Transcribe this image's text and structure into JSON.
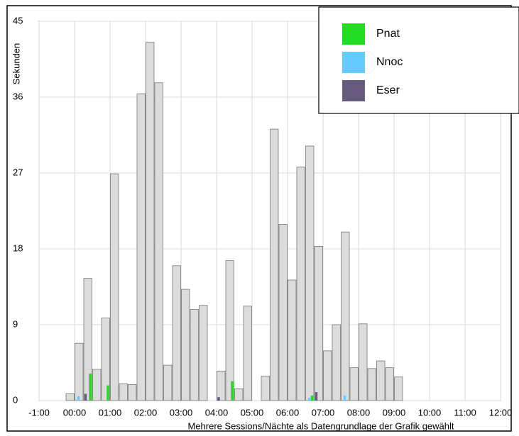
{
  "chart_data": {
    "type": "histogram",
    "ylabel": "Sekunden",
    "xlabel": "Mehrere Sessions/Nächte als Datengrundlage der Grafik gewählt",
    "bins": [
      -0.25,
      0,
      0.25,
      0.5,
      0.75,
      1,
      1.25,
      1.5,
      1.75,
      2,
      2.25,
      2.5,
      2.75,
      3,
      3.25,
      3.5,
      3.75,
      4,
      4.25,
      4.5,
      4.75,
      5,
      5.25,
      5.5,
      5.75,
      6,
      6.25,
      6.5,
      6.75,
      7,
      7.25,
      7.5,
      7.75,
      8,
      8.25,
      8.5,
      8.75,
      9,
      9.25
    ],
    "values": [
      0.8,
      6.8,
      14.5,
      3.7,
      9.8,
      26.9,
      2.0,
      1.9,
      36.4,
      42.5,
      37.7,
      4.2,
      16.0,
      13.2,
      10.8,
      11.3,
      0,
      3.5,
      16.6,
      1.4,
      11.2,
      0,
      2.9,
      32.2,
      20.9,
      14.3,
      27.7,
      30.2,
      18.3,
      5.9,
      9.0,
      20.0,
      3.9,
      9.1,
      3.8,
      4.7,
      3.9,
      2.8
    ],
    "color": "#dcdcdc",
    "series": [
      {
        "name": "Pnat",
        "color": "#22dd22",
        "values": [
          null,
          null,
          3.2,
          null,
          1.8,
          null,
          null,
          null,
          null,
          null,
          null,
          null,
          null,
          null,
          null,
          null,
          null,
          null,
          2.3,
          null,
          null,
          null,
          null,
          null,
          null,
          null,
          null,
          0.6,
          null,
          null,
          null,
          null,
          null,
          null,
          null,
          null,
          null,
          null
        ]
      },
      {
        "name": "Nnoc",
        "color": "#66ccff",
        "values": [
          null,
          0.5,
          null,
          null,
          null,
          null,
          null,
          null,
          null,
          null,
          null,
          null,
          null,
          null,
          null,
          null,
          null,
          null,
          null,
          null,
          null,
          null,
          null,
          null,
          null,
          null,
          null,
          0.3,
          null,
          null,
          null,
          0.6,
          null,
          null,
          null,
          null,
          null,
          null
        ]
      },
      {
        "name": "Eser",
        "color": "#665a7e",
        "values": [
          null,
          null,
          0.8,
          null,
          null,
          null,
          null,
          null,
          null,
          null,
          null,
          null,
          null,
          null,
          null,
          null,
          null,
          0.4,
          null,
          null,
          null,
          null,
          null,
          null,
          null,
          null,
          null,
          null,
          1.0,
          null,
          null,
          null,
          null,
          null,
          null,
          null,
          null,
          null
        ]
      }
    ],
    "xlim": [
      -1,
      12
    ],
    "xticks": [
      {
        "value": -1,
        "label": "-1:00"
      },
      {
        "value": 0,
        "label": "00:00"
      },
      {
        "value": 1,
        "label": "01:00"
      },
      {
        "value": 2,
        "label": "02:00"
      },
      {
        "value": 3,
        "label": "03:00"
      },
      {
        "value": 4,
        "label": "04:00"
      },
      {
        "value": 5,
        "label": "05:00"
      },
      {
        "value": 6,
        "label": "06:00"
      },
      {
        "value": 7,
        "label": "07:00"
      },
      {
        "value": 8,
        "label": "08:00"
      },
      {
        "value": 9,
        "label": "09:00"
      },
      {
        "value": 10,
        "label": "10:00"
      },
      {
        "value": 11,
        "label": "11:00"
      },
      {
        "value": 12,
        "label": "12:00"
      }
    ],
    "ylim": [
      0,
      45
    ],
    "yticks": [
      0,
      9,
      18,
      27,
      36,
      45
    ],
    "grid": true,
    "legend": "top-right"
  }
}
